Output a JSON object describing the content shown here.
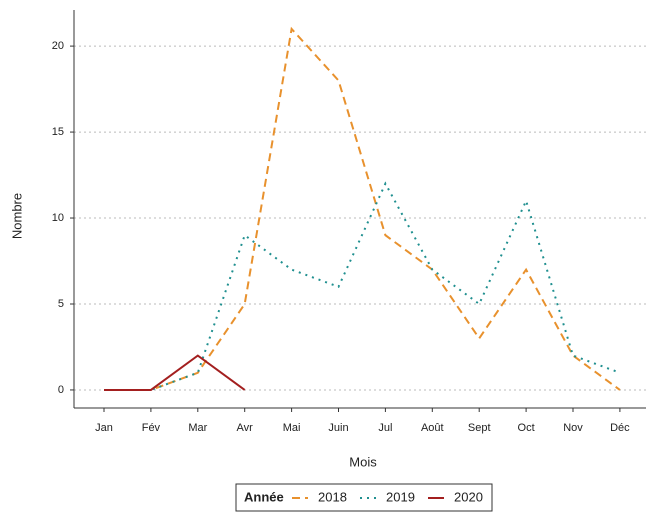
{
  "chart_data": {
    "type": "line",
    "x_label": "Mois",
    "y_label": "Nombre",
    "categories": [
      "Jan",
      "Fév",
      "Mar",
      "Avr",
      "Mai",
      "Juin",
      "Jul",
      "Août",
      "Sept",
      "Oct",
      "Nov",
      "Déc"
    ],
    "series": [
      {
        "name": "2018",
        "color": "#e8912d",
        "linestyle": "dashed",
        "values": [
          0,
          0,
          1,
          5,
          21,
          18,
          9,
          7,
          3,
          7,
          2,
          0
        ]
      },
      {
        "name": "2019",
        "color": "#1f8f8f",
        "linestyle": "dotted",
        "values": [
          0,
          0,
          1,
          9,
          7,
          6,
          12,
          7,
          5,
          11,
          2,
          1
        ]
      },
      {
        "name": "2020",
        "color": "#a31f1f",
        "linestyle": "solid",
        "values": [
          0,
          0,
          2,
          0,
          null,
          null,
          null,
          null,
          null,
          null,
          null,
          null
        ]
      }
    ],
    "ylim": [
      -1.05,
      22.1
    ],
    "yticks": [
      0,
      5,
      10,
      15,
      20
    ],
    "grid": true,
    "legend": {
      "title": "Année",
      "position": "bottom"
    }
  }
}
